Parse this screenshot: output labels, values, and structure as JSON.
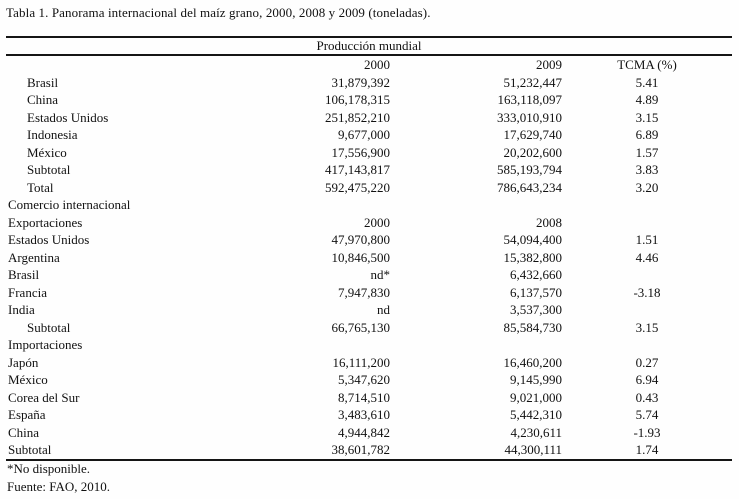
{
  "caption": "Tabla 1. Panorama internacional del maíz grano, 2000, 2008 y 2009 (toneladas).",
  "table": {
    "group_header": "Producción mundial",
    "columns": [
      "",
      "2000",
      "2009",
      "TCMA (%)"
    ],
    "rows": [
      {
        "label": "Brasil",
        "y2000": "31,879,392",
        "y2009": "51,232,447",
        "tcma": "5.41",
        "indent": true
      },
      {
        "label": "China",
        "y2000": "106,178,315",
        "y2009": "163,118,097",
        "tcma": "4.89",
        "indent": true
      },
      {
        "label": "Estados Unidos",
        "y2000": "251,852,210",
        "y2009": "333,010,910",
        "tcma": "3.15",
        "indent": true
      },
      {
        "label": "Indonesia",
        "y2000": "9,677,000",
        "y2009": "17,629,740",
        "tcma": "6.89",
        "indent": true
      },
      {
        "label": "México",
        "y2000": "17,556,900",
        "y2009": "20,202,600",
        "tcma": "1.57",
        "indent": true
      },
      {
        "label": "Subtotal",
        "y2000": "417,143,817",
        "y2009": "585,193,794",
        "tcma": "3.83",
        "indent": true
      },
      {
        "label": "Total",
        "y2000": "592,475,220",
        "y2009": "786,643,234",
        "tcma": "3.20",
        "indent": true
      },
      {
        "label": "Comercio internacional",
        "y2000": "",
        "y2009": "",
        "tcma": "",
        "indent": false
      },
      {
        "label": "Exportaciones",
        "y2000": "2000",
        "y2009": "2008",
        "tcma": "",
        "indent": false
      },
      {
        "label": "Estados Unidos",
        "y2000": "47,970,800",
        "y2009": "54,094,400",
        "tcma": "1.51",
        "indent": false
      },
      {
        "label": "Argentina",
        "y2000": "10,846,500",
        "y2009": "15,382,800",
        "tcma": "4.46",
        "indent": false
      },
      {
        "label": "Brasil",
        "y2000": "nd*",
        "y2009": "6,432,660",
        "tcma": "",
        "indent": false
      },
      {
        "label": "Francia",
        "y2000": "7,947,830",
        "y2009": "6,137,570",
        "tcma": "-3.18",
        "indent": false
      },
      {
        "label": "India",
        "y2000": "nd",
        "y2009": "3,537,300",
        "tcma": "",
        "indent": false
      },
      {
        "label": "Subtotal",
        "y2000": "66,765,130",
        "y2009": "85,584,730",
        "tcma": "3.15",
        "indent": true
      },
      {
        "label": "Importaciones",
        "y2000": "",
        "y2009": "",
        "tcma": "",
        "indent": false
      },
      {
        "label": "Japón",
        "y2000": "16,111,200",
        "y2009": "16,460,200",
        "tcma": "0.27",
        "indent": false
      },
      {
        "label": "México",
        "y2000": "5,347,620",
        "y2009": "9,145,990",
        "tcma": "6.94",
        "indent": false
      },
      {
        "label": "Corea del Sur",
        "y2000": "8,714,510",
        "y2009": "9,021,000",
        "tcma": "0.43",
        "indent": false
      },
      {
        "label": "España",
        "y2000": "3,483,610",
        "y2009": "5,442,310",
        "tcma": "5.74",
        "indent": false
      },
      {
        "label": "China",
        "y2000": "4,944,842",
        "y2009": "4,230,611",
        "tcma": "-1.93",
        "indent": false
      },
      {
        "label": "Subtotal",
        "y2000": "38,601,782",
        "y2009": "44,300,111",
        "tcma": "1.74",
        "indent": false
      }
    ]
  },
  "footnotes": [
    "*No disponible.",
    "Fuente: FAO, 2010."
  ]
}
